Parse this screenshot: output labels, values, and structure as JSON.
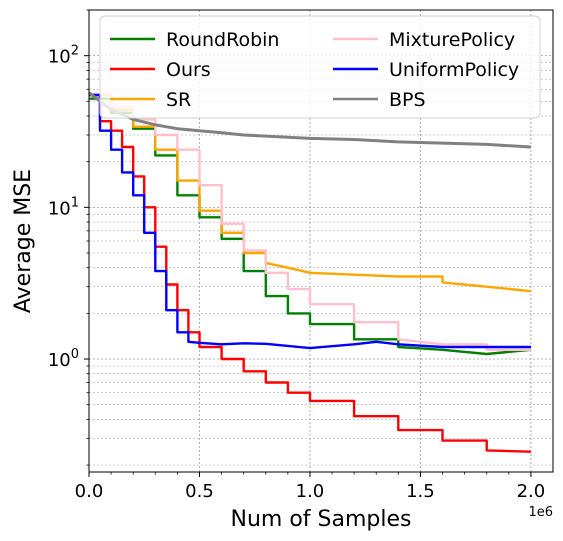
{
  "chart_data": {
    "type": "line",
    "title": "",
    "xlabel": "Num of Samples",
    "ylabel": "Average MSE",
    "x_offset_label": "1e6",
    "xlim": [
      0,
      2100000
    ],
    "ylim": [
      0.18,
      200
    ],
    "yscale": "log",
    "grid": true,
    "legend_position": "top",
    "x_ticks": [
      {
        "value": 0,
        "label": "0.0"
      },
      {
        "value": 500000,
        "label": "0.5"
      },
      {
        "value": 1000000,
        "label": "1.0"
      },
      {
        "value": 1500000,
        "label": "1.5"
      },
      {
        "value": 2000000,
        "label": "2.0"
      }
    ],
    "y_ticks": [
      {
        "value": 1,
        "base": "10",
        "exp": "0"
      },
      {
        "value": 10,
        "base": "10",
        "exp": "1"
      },
      {
        "value": 100,
        "base": "10",
        "exp": "2"
      }
    ],
    "series": [
      {
        "name": "RoundRobin",
        "color": "#008000",
        "x": [
          0,
          100000,
          200000,
          300000,
          400000,
          500000,
          600000,
          700000,
          800000,
          900000,
          1000000,
          1200000,
          1400000,
          1600000,
          1800000,
          2000000
        ],
        "y": [
          52,
          42,
          33,
          22,
          12,
          8.6,
          6.2,
          3.8,
          2.6,
          2.0,
          1.7,
          1.35,
          1.2,
          1.15,
          1.08,
          1.15
        ]
      },
      {
        "name": "Ours",
        "color": "#ff0000",
        "x": [
          0,
          50000,
          100000,
          150000,
          200000,
          250000,
          300000,
          350000,
          400000,
          450000,
          500000,
          600000,
          700000,
          800000,
          900000,
          1000000,
          1200000,
          1400000,
          1600000,
          1800000,
          2000000
        ],
        "y": [
          55,
          37,
          32,
          25,
          16,
          10,
          5.5,
          3.1,
          2.1,
          1.5,
          1.2,
          1.0,
          0.83,
          0.7,
          0.6,
          0.53,
          0.42,
          0.34,
          0.29,
          0.25,
          0.245
        ]
      },
      {
        "name": "SR",
        "color": "#ffa500",
        "x": [
          0,
          100000,
          200000,
          300000,
          400000,
          500000,
          600000,
          700000,
          800000,
          900000,
          1000000,
          1200000,
          1400000,
          1600000,
          1800000,
          2000000
        ],
        "y": [
          55,
          44,
          34,
          24,
          15,
          9.5,
          6.8,
          5.0,
          4.3,
          4.0,
          3.7,
          3.6,
          3.5,
          3.2,
          3.0,
          2.8
        ]
      },
      {
        "name": "MixturePolicy",
        "color": "#ffc0cb",
        "x": [
          0,
          100000,
          200000,
          300000,
          400000,
          500000,
          600000,
          700000,
          800000,
          900000,
          1000000,
          1200000,
          1400000,
          1600000,
          1800000,
          2000000
        ],
        "y": [
          56,
          46,
          38,
          30,
          24,
          14,
          7.8,
          5.2,
          3.7,
          2.9,
          2.3,
          1.75,
          1.35,
          1.25,
          1.15,
          1.15
        ]
      },
      {
        "name": "UniformPolicy",
        "color": "#0000ff",
        "x": [
          0,
          50000,
          100000,
          150000,
          200000,
          250000,
          300000,
          350000,
          400000,
          450000,
          500000,
          600000,
          700000,
          800000,
          900000,
          1000000,
          1200000,
          1300000,
          1400000,
          1600000,
          1800000,
          2000000
        ],
        "y": [
          55,
          32,
          24,
          17,
          12,
          6.8,
          3.8,
          2.1,
          1.5,
          1.3,
          1.28,
          1.25,
          1.27,
          1.26,
          1.22,
          1.18,
          1.25,
          1.3,
          1.25,
          1.2,
          1.2,
          1.2
        ]
      },
      {
        "name": "BPS",
        "color": "#808080",
        "x": [
          0,
          100000,
          200000,
          300000,
          400000,
          500000,
          600000,
          700000,
          800000,
          900000,
          1000000,
          1200000,
          1400000,
          1600000,
          1800000,
          2000000
        ],
        "y": [
          57,
          44,
          38,
          35,
          33,
          32,
          31,
          30,
          29.5,
          29,
          28.5,
          28,
          27,
          26.5,
          26,
          25
        ]
      }
    ]
  }
}
